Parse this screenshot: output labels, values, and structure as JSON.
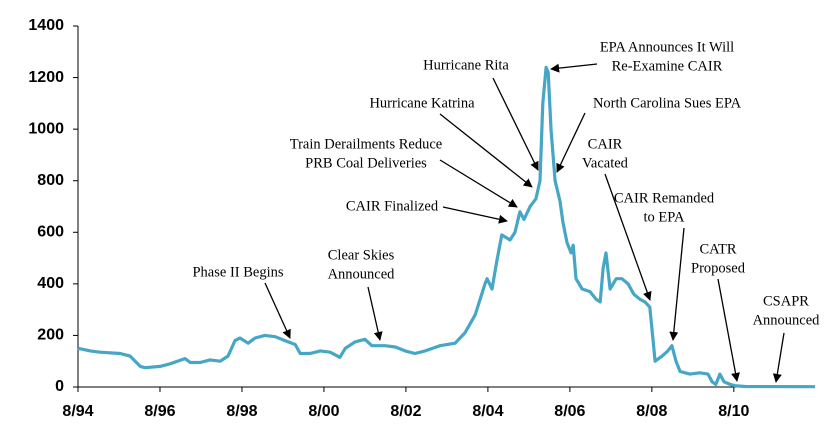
{
  "chart_data": {
    "type": "line",
    "color": "#46a6c6",
    "x": [
      1994.58,
      1994.88,
      1995.12,
      1995.61,
      1995.85,
      1996.1,
      1996.22,
      1996.58,
      1996.83,
      1997.19,
      1997.32,
      1997.56,
      1997.8,
      1998.05,
      1998.24,
      1998.41,
      1998.53,
      1998.73,
      1998.9,
      1999.14,
      1999.39,
      1999.63,
      1999.88,
      2000.0,
      2000.24,
      2000.49,
      2000.73,
      2000.97,
      2001.1,
      2001.34,
      2001.58,
      2001.75,
      2002.07,
      2002.32,
      2002.56,
      2002.8,
      2003.05,
      2003.41,
      2003.78,
      2004.02,
      2004.27,
      2004.51,
      2004.56,
      2004.68,
      2004.8,
      2004.92,
      2005.12,
      2005.24,
      2005.36,
      2005.46,
      2005.61,
      2005.75,
      2005.85,
      2005.92,
      2006.0,
      2006.05,
      2006.12,
      2006.22,
      2006.34,
      2006.41,
      2006.51,
      2006.61,
      2006.66,
      2006.73,
      2006.88,
      2007.07,
      2007.22,
      2007.32,
      2007.39,
      2007.46,
      2007.56,
      2007.71,
      2007.85,
      2008.0,
      2008.14,
      2008.29,
      2008.41,
      2008.53,
      2008.61,
      2008.66,
      2008.83,
      2008.97,
      2009.07,
      2009.17,
      2009.27,
      2009.51,
      2009.75,
      2009.95,
      2010.05,
      2010.14,
      2010.24,
      2010.34,
      2010.49,
      2010.61,
      2010.85,
      2012.56
    ],
    "values": [
      150,
      140,
      135,
      130,
      120,
      80,
      75,
      80,
      90,
      110,
      95,
      95,
      105,
      100,
      120,
      180,
      190,
      170,
      190,
      200,
      195,
      180,
      165,
      130,
      130,
      140,
      135,
      115,
      150,
      175,
      185,
      160,
      160,
      155,
      140,
      130,
      140,
      160,
      170,
      210,
      280,
      400,
      420,
      380,
      490,
      590,
      570,
      600,
      680,
      650,
      700,
      730,
      800,
      1100,
      1240,
      1220,
      1000,
      800,
      720,
      640,
      560,
      520,
      550,
      420,
      380,
      370,
      340,
      330,
      460,
      520,
      380,
      420,
      420,
      400,
      360,
      340,
      330,
      310,
      180,
      100,
      120,
      140,
      160,
      100,
      60,
      50,
      55,
      50,
      20,
      10,
      50,
      20,
      10,
      5,
      2,
      1
    ],
    "xlim": [
      1994.58,
      2012.56
    ],
    "xticks": [
      {
        "value": 1994.58,
        "label": "8/94"
      },
      {
        "value": 1996.58,
        "label": "8/96"
      },
      {
        "value": 1998.58,
        "label": "8/98"
      },
      {
        "value": 2000.58,
        "label": "8/00"
      },
      {
        "value": 2002.58,
        "label": "8/02"
      },
      {
        "value": 2004.58,
        "label": "8/04"
      },
      {
        "value": 2006.58,
        "label": "8/06"
      },
      {
        "value": 2008.58,
        "label": "8/08"
      },
      {
        "value": 2010.58,
        "label": "8/10"
      }
    ],
    "ylim": [
      0,
      1400
    ],
    "yticks": [
      0,
      200,
      400,
      600,
      800,
      1000,
      1200,
      1400
    ],
    "annotations": [
      {
        "lines": [
          "Phase II Begins"
        ]
      },
      {
        "lines": [
          "Clear Skies",
          "Announced"
        ]
      },
      {
        "lines": [
          "CAIR Finalized"
        ]
      },
      {
        "lines": [
          "Train Derailments Reduce",
          "PRB Coal Deliveries"
        ]
      },
      {
        "lines": [
          "Hurricane Katrina"
        ]
      },
      {
        "lines": [
          "Hurricane Rita"
        ]
      },
      {
        "lines": [
          "EPA Announces It Will",
          "Re-Examine CAIR"
        ]
      },
      {
        "lines": [
          "North Carolina Sues EPA"
        ]
      },
      {
        "lines": [
          "CAIR",
          "Vacated"
        ]
      },
      {
        "lines": [
          "CAIR Remanded",
          "to EPA"
        ]
      },
      {
        "lines": [
          "CATR",
          "Proposed"
        ]
      },
      {
        "lines": [
          "CSAPR",
          "Announced"
        ]
      }
    ]
  }
}
